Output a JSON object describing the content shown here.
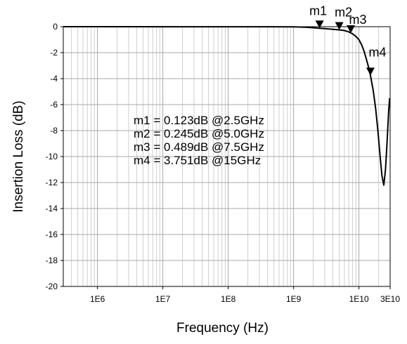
{
  "chart_data": {
    "type": "line",
    "xlabel": "Frequency (Hz)",
    "ylabel": "Insertion Loss (dB)",
    "xscale": "log",
    "xlim": [
      300000,
      30000000000
    ],
    "ylim": [
      -20,
      0
    ],
    "grid": true,
    "x_ticks": [
      {
        "value": 1000000,
        "label": "1E6"
      },
      {
        "value": 10000000,
        "label": "1E7"
      },
      {
        "value": 100000000,
        "label": "1E8"
      },
      {
        "value": 1000000000,
        "label": "1E9"
      },
      {
        "value": 10000000000,
        "label": "1E10"
      },
      {
        "value": 30000000000,
        "label": "3E10"
      }
    ],
    "y_ticks": [
      0,
      -2,
      -4,
      -6,
      -8,
      -10,
      -12,
      -14,
      -16,
      -18,
      -20
    ],
    "series": [
      {
        "x": [
          300000,
          1000000000,
          1500000000,
          2000000000,
          2500000000,
          3000000000,
          4000000000,
          5000000000,
          6000000000,
          7000000000,
          7500000000,
          8000000000,
          9000000000,
          10000000000,
          11000000000,
          12000000000,
          13000000000,
          14000000000,
          15000000000,
          16500000000,
          18000000000,
          19500000000,
          21000000000,
          22500000000,
          24000000000,
          25500000000,
          26500000000,
          27500000000,
          28500000000,
          29500000000
        ],
        "y": [
          0,
          -0.01,
          -0.04,
          -0.08,
          -0.123,
          -0.15,
          -0.2,
          -0.245,
          -0.3,
          -0.4,
          -0.489,
          -0.55,
          -0.75,
          -1.0,
          -1.4,
          -1.9,
          -2.5,
          -3.1,
          -3.751,
          -4.9,
          -6.3,
          -8.0,
          -9.9,
          -11.5,
          -12.2,
          -11.0,
          -9.5,
          -8.0,
          -6.5,
          -5.5
        ]
      }
    ],
    "markers": [
      {
        "name": "m1",
        "x": 2500000000,
        "y": -0.123
      },
      {
        "name": "m2",
        "x": 5000000000,
        "y": -0.245
      },
      {
        "name": "m3",
        "x": 7500000000,
        "y": -0.489
      },
      {
        "name": "m4",
        "x": 15000000000,
        "y": -3.751
      }
    ],
    "annotations": [
      "m1  =  0.123dB  @2.5GHz",
      "m2  =  0.245dB  @5.0GHz",
      "m3  =  0.489dB  @7.5GHz",
      "m4 = 3.751dB @15GHz"
    ]
  }
}
